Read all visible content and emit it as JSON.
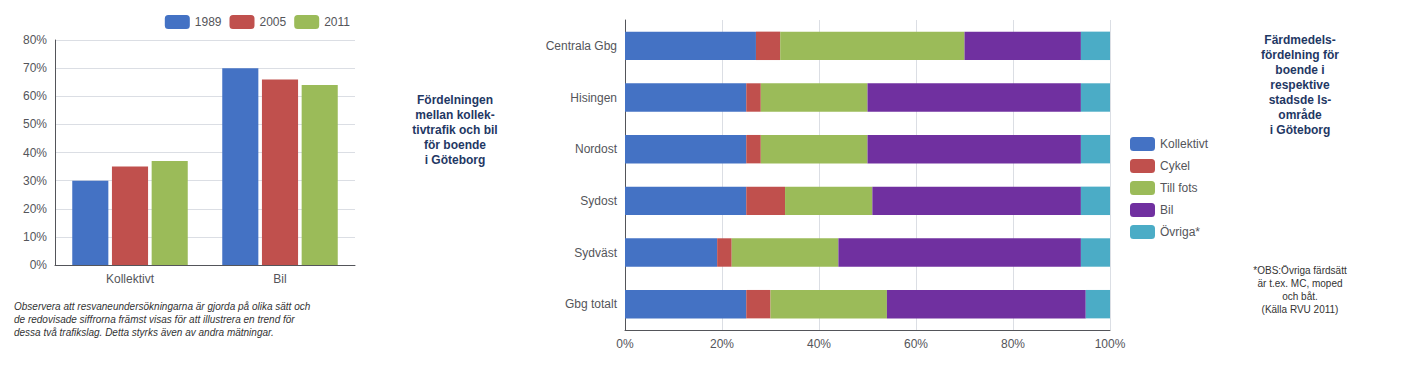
{
  "chart_data": [
    {
      "type": "bar",
      "title": "Fördelningen\nmellan kollek-\ntivtrafik och bil\nför boende\ni Göteborg",
      "annotations": [
        "Observera att resvaneundersökningarna är gjorda på olika sätt och\nde redovisade siffrorna främst visas för att illustrera en trend för\ndessa två trafikslag. Detta styrks även av andra mätningar."
      ],
      "categories": [
        "Kollektivt",
        "Bil"
      ],
      "series": [
        {
          "name": "1989",
          "color": "#4472C4",
          "values": [
            30,
            70
          ]
        },
        {
          "name": "2005",
          "color": "#C0504D",
          "values": [
            35,
            66
          ]
        },
        {
          "name": "2011",
          "color": "#9BBB59",
          "values": [
            37,
            64
          ]
        }
      ],
      "ylim": [
        0,
        80
      ],
      "yticks": [
        {
          "value": 0,
          "label": "0%"
        },
        {
          "value": 10,
          "label": "10%"
        },
        {
          "value": 20,
          "label": "20%"
        },
        {
          "value": 30,
          "label": "30%"
        },
        {
          "value": 40,
          "label": "40%"
        },
        {
          "value": 50,
          "label": "50%"
        },
        {
          "value": 60,
          "label": "60%"
        },
        {
          "value": 70,
          "label": "70%"
        },
        {
          "value": 80,
          "label": "80%"
        }
      ],
      "grid": true,
      "legend": "upper right"
    },
    {
      "type": "bar",
      "title": "Färdmedels-\nfördelning för\nboende i\nrespektive\nstadsde ls-\nområde\ni Göteborg",
      "annotations": [
        "*OBS:Övriga färdsätt\när t.ex. MC, moped\noch båt.\n(Källa RVU 2011)"
      ],
      "orientation": "horizontal",
      "stacked": true,
      "categories": [
        "Centrala Gbg",
        "Hisingen",
        "Nordost",
        "Sydost",
        "Sydväst",
        "Gbg totalt"
      ],
      "series": [
        {
          "name": "Kollektivt",
          "color": "#4472C4",
          "values": [
            27,
            25,
            25,
            25,
            19,
            25
          ]
        },
        {
          "name": "Cykel",
          "color": "#C0504D",
          "values": [
            5,
            3,
            3,
            8,
            3,
            5
          ]
        },
        {
          "name": "Till fots",
          "color": "#9BBB59",
          "values": [
            38,
            22,
            22,
            18,
            22,
            24
          ]
        },
        {
          "name": "Bil",
          "color": "#7030A0",
          "values": [
            24,
            44,
            44,
            43,
            50,
            41
          ]
        },
        {
          "name": "Övriga*",
          "color": "#4BACC6",
          "values": [
            6,
            6,
            6,
            6,
            6,
            5
          ]
        }
      ],
      "xlim": [
        0,
        100
      ],
      "xticks": [
        {
          "value": 0,
          "label": "0%"
        },
        {
          "value": 20,
          "label": "20%"
        },
        {
          "value": 40,
          "label": "40%"
        },
        {
          "value": 60,
          "label": "60%"
        },
        {
          "value": 80,
          "label": "80%"
        },
        {
          "value": 100,
          "label": "100%"
        }
      ],
      "grid": true,
      "legend": "right"
    }
  ]
}
